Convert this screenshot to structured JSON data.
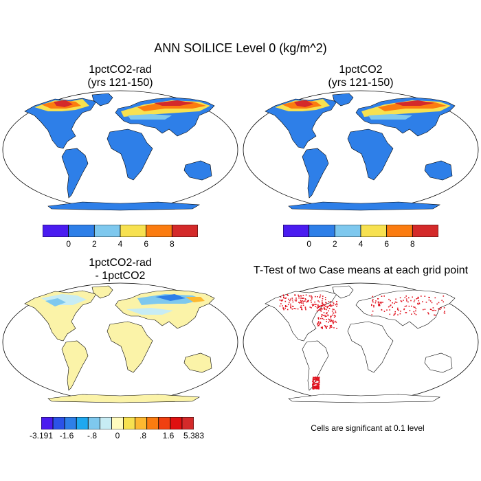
{
  "title": "ANN SOILICE Level 0 (kg/m^2)",
  "panels": {
    "top_left": {
      "title_line1": "1pctCO2-rad",
      "title_line2": "(yrs 121-150)"
    },
    "top_right": {
      "title_line1": "1pctCO2",
      "title_line2": "(yrs 121-150)"
    },
    "bottom_left": {
      "title_line1": "1pctCO2-rad",
      "title_line2": "- 1pctCO2"
    },
    "bottom_right": {
      "title": "T-Test of two Case means at each grid point",
      "note": "Cells are significant at 0.1 level"
    }
  },
  "colorbars": {
    "absolute": {
      "colors": [
        "#4a1cf0",
        "#2e7fe8",
        "#7ec8ee",
        "#f7e150",
        "#fb7c10",
        "#d42a2a"
      ],
      "labels": [
        "0",
        "2",
        "4",
        "6",
        "8"
      ]
    },
    "difference": {
      "colors": [
        "#4a1cf0",
        "#2b52e8",
        "#2e7fe8",
        "#1fa8f0",
        "#7ec8ee",
        "#c7ecf4",
        "#fffbbe",
        "#f7e150",
        "#fdb830",
        "#fb7c10",
        "#f04010",
        "#e01010",
        "#d42a2a"
      ],
      "labels": [
        "-3.191",
        "-1.6",
        "-.8",
        "0",
        ".8",
        "1.6",
        "5.383"
      ]
    }
  },
  "map_colors": {
    "ocean": "#ffffff",
    "land_absolute": "#2e7fe8",
    "land_difference": "#fbf3a8",
    "significant": "#e0101c"
  }
}
